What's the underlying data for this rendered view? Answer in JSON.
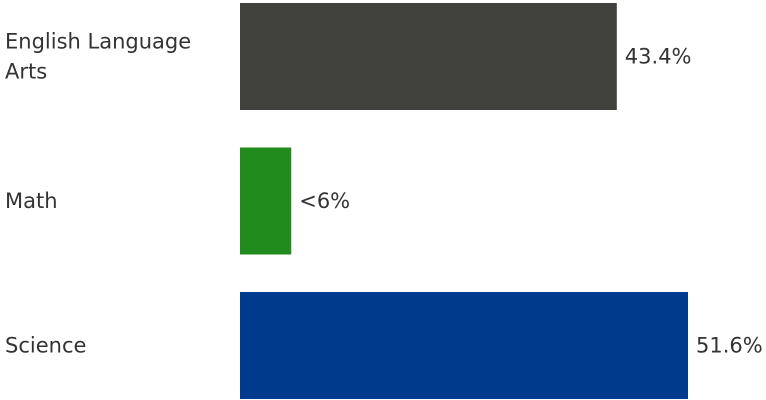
{
  "chart_data": {
    "type": "bar",
    "orientation": "horizontal",
    "title": "",
    "xlabel": "",
    "ylabel": "",
    "grid": false,
    "legend": "none",
    "categories": [
      [
        "English Language",
        "Arts"
      ],
      [
        "Math"
      ],
      [
        "Science"
      ]
    ],
    "values": [
      43.4,
      5.9,
      51.6
    ],
    "value_labels": [
      "43.4%",
      "<6%",
      "51.6%"
    ],
    "colors": [
      "#41413e",
      "#228b1e",
      "#003a8c"
    ],
    "xlim": [
      0,
      51.6
    ]
  }
}
